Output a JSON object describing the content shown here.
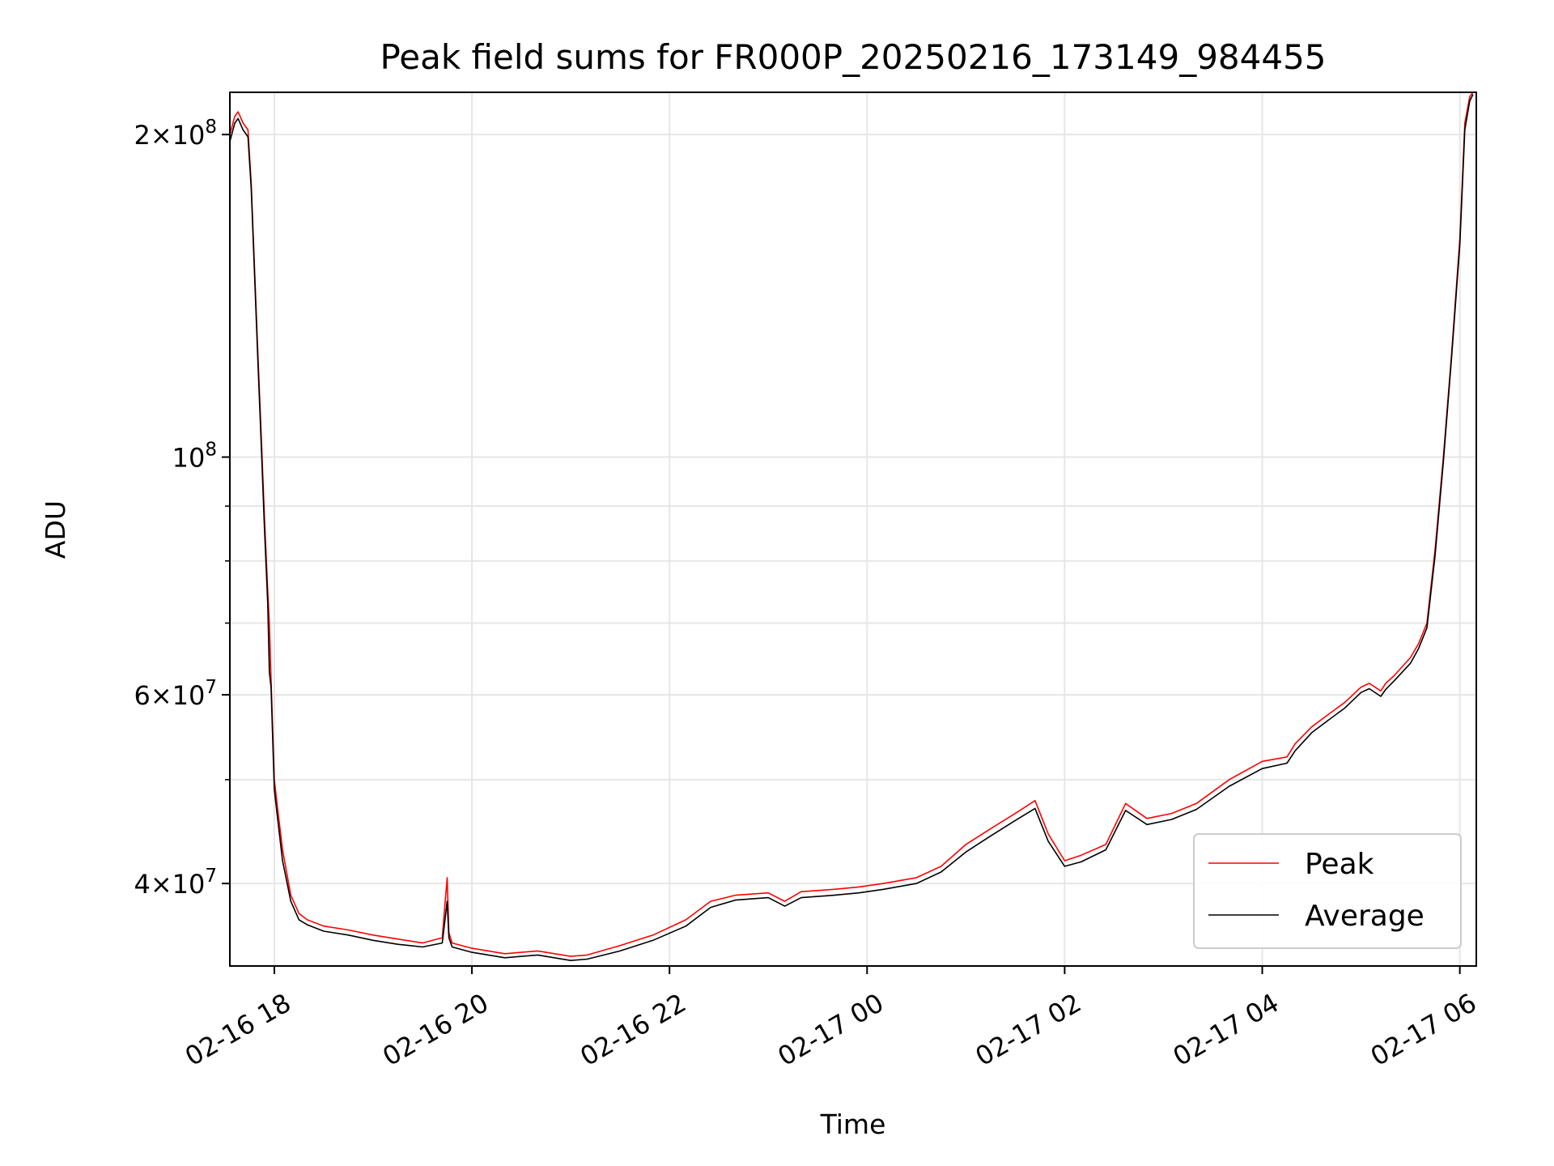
{
  "chart_data": {
    "type": "line",
    "title": "Peak field sums for FR000P_20250216_173149_984455",
    "xlabel": "Time",
    "ylabel": "ADU",
    "yscale": "log",
    "ylim": [
      33500000,
      219000000
    ],
    "xlim": [
      "2025-02-16 17:33",
      "2025-02-17 06:10"
    ],
    "grid": true,
    "legend_position": "lower right",
    "x_ticks": [
      {
        "value": "2025-02-16 18:00",
        "label": "02-16 18"
      },
      {
        "value": "2025-02-16 20:00",
        "label": "02-16 20"
      },
      {
        "value": "2025-02-16 22:00",
        "label": "02-16 22"
      },
      {
        "value": "2025-02-17 00:00",
        "label": "02-17 00"
      },
      {
        "value": "2025-02-17 02:00",
        "label": "02-17 02"
      },
      {
        "value": "2025-02-17 04:00",
        "label": "02-17 04"
      },
      {
        "value": "2025-02-17 06:00",
        "label": "02-17 06"
      }
    ],
    "y_ticks_major": [
      {
        "value": 40000000,
        "base": "4",
        "exp": "7"
      },
      {
        "value": 60000000,
        "base": "6",
        "exp": "7"
      },
      {
        "value": 100000000,
        "base": "",
        "exp": "8"
      },
      {
        "value": 200000000,
        "base": "2",
        "exp": "8"
      }
    ],
    "y_ticks_minor": [
      50000000,
      70000000,
      80000000,
      90000000
    ],
    "series": [
      {
        "name": "Peak",
        "color": "#ff0000",
        "x": [
          "2025-02-16 17:33",
          "2025-02-16 17:36",
          "2025-02-16 17:38",
          "2025-02-16 17:41",
          "2025-02-16 17:44",
          "2025-02-16 17:46",
          "2025-02-16 17:48",
          "2025-02-16 17:50",
          "2025-02-16 17:52",
          "2025-02-16 17:54",
          "2025-02-16 17:56",
          "2025-02-16 17:57",
          "2025-02-16 17:58",
          "2025-02-16 18:00",
          "2025-02-16 18:02",
          "2025-02-16 18:05",
          "2025-02-16 18:10",
          "2025-02-16 18:15",
          "2025-02-16 18:20",
          "2025-02-16 18:30",
          "2025-02-16 18:45",
          "2025-02-16 19:00",
          "2025-02-16 19:15",
          "2025-02-16 19:30",
          "2025-02-16 19:42",
          "2025-02-16 19:45",
          "2025-02-16 19:46",
          "2025-02-16 19:48",
          "2025-02-16 20:00",
          "2025-02-16 20:20",
          "2025-02-16 20:40",
          "2025-02-16 21:00",
          "2025-02-16 21:10",
          "2025-02-16 21:30",
          "2025-02-16 21:50",
          "2025-02-16 22:10",
          "2025-02-16 22:25",
          "2025-02-16 22:40",
          "2025-02-16 23:00",
          "2025-02-16 23:10",
          "2025-02-16 23:20",
          "2025-02-16 23:40",
          "2025-02-16 23:55",
          "2025-02-17 00:10",
          "2025-02-17 00:30",
          "2025-02-17 00:45",
          "2025-02-17 01:00",
          "2025-02-17 01:15",
          "2025-02-17 01:30",
          "2025-02-17 01:42",
          "2025-02-17 01:50",
          "2025-02-17 02:00",
          "2025-02-17 02:10",
          "2025-02-17 02:25",
          "2025-02-17 02:37",
          "2025-02-17 02:50",
          "2025-02-17 03:05",
          "2025-02-17 03:20",
          "2025-02-17 03:40",
          "2025-02-17 04:00",
          "2025-02-17 04:15",
          "2025-02-17 04:20",
          "2025-02-17 04:30",
          "2025-02-17 04:40",
          "2025-02-17 04:50",
          "2025-02-17 05:00",
          "2025-02-17 05:05",
          "2025-02-17 05:12",
          "2025-02-17 05:15",
          "2025-02-17 05:20",
          "2025-02-17 05:30",
          "2025-02-17 05:35",
          "2025-02-17 05:40",
          "2025-02-17 05:45",
          "2025-02-17 05:50",
          "2025-02-17 05:55",
          "2025-02-17 06:00",
          "2025-02-17 06:03",
          "2025-02-17 06:06",
          "2025-02-17 06:08"
        ],
        "y": [
          200000000,
          208000000,
          210000000,
          205000000,
          202000000,
          180000000,
          150000000,
          125000000,
          105000000,
          88000000,
          75000000,
          70000000,
          62000000,
          50000000,
          47000000,
          43000000,
          39000000,
          37500000,
          37000000,
          36500000,
          36200000,
          35800000,
          35500000,
          35200000,
          35600000,
          40500000,
          36000000,
          35200000,
          34800000,
          34400000,
          34600000,
          34200000,
          34300000,
          35000000,
          35800000,
          37000000,
          38500000,
          39000000,
          39200000,
          38500000,
          39300000,
          39500000,
          39700000,
          40000000,
          40500000,
          41500000,
          43500000,
          45000000,
          46500000,
          47800000,
          44500000,
          42000000,
          42500000,
          43500000,
          47500000,
          46000000,
          46500000,
          47500000,
          50000000,
          52000000,
          52500000,
          54000000,
          56000000,
          57500000,
          59000000,
          61000000,
          61500000,
          60500000,
          61500000,
          62500000,
          65000000,
          67000000,
          70000000,
          82000000,
          100000000,
          125000000,
          160000000,
          205000000,
          217000000,
          219000000
        ]
      },
      {
        "name": "Average",
        "color": "#000000",
        "x": [
          "2025-02-16 17:33",
          "2025-02-16 17:36",
          "2025-02-16 17:38",
          "2025-02-16 17:41",
          "2025-02-16 17:44",
          "2025-02-16 17:46",
          "2025-02-16 17:48",
          "2025-02-16 17:50",
          "2025-02-16 17:52",
          "2025-02-16 17:54",
          "2025-02-16 17:56",
          "2025-02-16 17:57",
          "2025-02-16 17:58",
          "2025-02-16 18:00",
          "2025-02-16 18:02",
          "2025-02-16 18:05",
          "2025-02-16 18:10",
          "2025-02-16 18:15",
          "2025-02-16 18:20",
          "2025-02-16 18:30",
          "2025-02-16 18:45",
          "2025-02-16 19:00",
          "2025-02-16 19:15",
          "2025-02-16 19:30",
          "2025-02-16 19:42",
          "2025-02-16 19:45",
          "2025-02-16 19:46",
          "2025-02-16 19:48",
          "2025-02-16 20:00",
          "2025-02-16 20:20",
          "2025-02-16 20:40",
          "2025-02-16 21:00",
          "2025-02-16 21:10",
          "2025-02-16 21:30",
          "2025-02-16 21:50",
          "2025-02-16 22:10",
          "2025-02-16 22:25",
          "2025-02-16 22:40",
          "2025-02-16 23:00",
          "2025-02-16 23:10",
          "2025-02-16 23:20",
          "2025-02-16 23:40",
          "2025-02-16 23:55",
          "2025-02-17 00:10",
          "2025-02-17 00:30",
          "2025-02-17 00:45",
          "2025-02-17 01:00",
          "2025-02-17 01:15",
          "2025-02-17 01:30",
          "2025-02-17 01:42",
          "2025-02-17 01:50",
          "2025-02-17 02:00",
          "2025-02-17 02:10",
          "2025-02-17 02:25",
          "2025-02-17 02:37",
          "2025-02-17 02:50",
          "2025-02-17 03:05",
          "2025-02-17 03:20",
          "2025-02-17 03:40",
          "2025-02-17 04:00",
          "2025-02-17 04:15",
          "2025-02-17 04:20",
          "2025-02-17 04:30",
          "2025-02-17 04:40",
          "2025-02-17 04:50",
          "2025-02-17 05:00",
          "2025-02-17 05:05",
          "2025-02-17 05:12",
          "2025-02-17 05:15",
          "2025-02-17 05:20",
          "2025-02-17 05:30",
          "2025-02-17 05:35",
          "2025-02-17 05:40",
          "2025-02-17 05:45",
          "2025-02-17 05:50",
          "2025-02-17 05:55",
          "2025-02-17 06:00",
          "2025-02-17 06:03",
          "2025-02-17 06:06",
          "2025-02-17 06:08"
        ],
        "y": [
          197000000,
          205000000,
          207000000,
          202000000,
          199000000,
          178000000,
          148000000,
          123000000,
          103000000,
          86000000,
          73000000,
          63000000,
          61000000,
          49000000,
          46000000,
          42000000,
          38500000,
          37000000,
          36600000,
          36100000,
          35800000,
          35400000,
          35100000,
          34900000,
          35200000,
          38500000,
          35600000,
          34900000,
          34500000,
          34100000,
          34300000,
          33900000,
          34000000,
          34600000,
          35400000,
          36500000,
          38000000,
          38600000,
          38800000,
          38100000,
          38800000,
          39000000,
          39200000,
          39500000,
          40000000,
          41000000,
          42800000,
          44300000,
          45800000,
          47000000,
          43800000,
          41500000,
          41900000,
          43000000,
          46800000,
          45400000,
          45900000,
          46900000,
          49300000,
          51200000,
          51800000,
          53200000,
          55300000,
          56800000,
          58300000,
          60300000,
          60800000,
          59800000,
          60700000,
          61800000,
          64200000,
          66300000,
          69300000,
          81000000,
          99000000,
          124000000,
          158000000,
          202000000,
          215000000,
          218000000
        ]
      }
    ]
  }
}
